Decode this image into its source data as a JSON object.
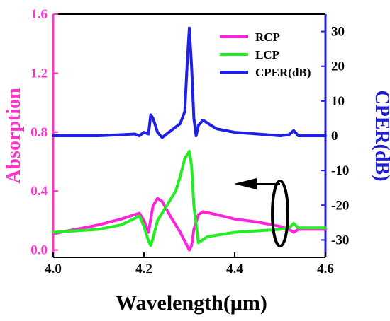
{
  "chart_data": {
    "type": "line",
    "xlabel": "Wavelength(μm)",
    "ylabel_left": "Absorption",
    "ylabel_right": "CPER(dB)",
    "xlim": [
      4.0,
      4.6
    ],
    "ylim_left": [
      -0.05,
      1.6
    ],
    "ylim_right": [
      -35,
      35
    ],
    "x_ticks": [
      "4.0",
      "4.2",
      "4.4",
      "4.6"
    ],
    "x_tick_values": [
      4.0,
      4.2,
      4.4,
      4.6
    ],
    "y_left_ticks": [
      "0.0",
      "0.4",
      "0.8",
      "1.2",
      "1.6"
    ],
    "y_left_tick_values": [
      0.0,
      0.4,
      0.8,
      1.2,
      1.6
    ],
    "y_right_ticks": [
      "-30",
      "-20",
      "-10",
      "0",
      "10",
      "20",
      "30"
    ],
    "y_right_tick_values": [
      -30,
      -20,
      -10,
      0,
      10,
      20,
      30
    ],
    "colors": {
      "left_axis": "#ff33cc",
      "right_axis": "#1f1fd6",
      "frame": "#000000"
    },
    "legend_placement": "top-right",
    "series": [
      {
        "name": "RCP",
        "axis": "left",
        "color": "#ff22dd",
        "x": [
          4.0,
          4.05,
          4.1,
          4.15,
          4.18,
          4.19,
          4.2,
          4.21,
          4.22,
          4.23,
          4.24,
          4.26,
          4.28,
          4.29,
          4.3,
          4.305,
          4.31,
          4.32,
          4.33,
          4.36,
          4.4,
          4.45,
          4.5,
          4.52,
          4.53,
          4.54,
          4.56,
          4.6
        ],
        "y": [
          0.11,
          0.14,
          0.17,
          0.21,
          0.24,
          0.25,
          0.2,
          0.12,
          0.3,
          0.35,
          0.33,
          0.22,
          0.12,
          0.06,
          0.0,
          0.03,
          0.14,
          0.24,
          0.26,
          0.24,
          0.21,
          0.19,
          0.16,
          0.14,
          0.12,
          0.14,
          0.14,
          0.14
        ]
      },
      {
        "name": "LCP",
        "axis": "left",
        "color": "#22ee22",
        "x": [
          4.0,
          4.05,
          4.1,
          4.15,
          4.17,
          4.19,
          4.2,
          4.21,
          4.215,
          4.22,
          4.23,
          4.25,
          4.27,
          4.28,
          4.29,
          4.3,
          4.305,
          4.31,
          4.32,
          4.34,
          4.4,
          4.45,
          4.5,
          4.52,
          4.53,
          4.54,
          4.56,
          4.6
        ],
        "y": [
          0.12,
          0.13,
          0.14,
          0.17,
          0.2,
          0.23,
          0.16,
          0.06,
          0.03,
          0.08,
          0.2,
          0.3,
          0.4,
          0.5,
          0.62,
          0.67,
          0.57,
          0.3,
          0.05,
          0.09,
          0.12,
          0.13,
          0.14,
          0.15,
          0.18,
          0.15,
          0.15,
          0.15
        ]
      },
      {
        "name": "CPER(dB)",
        "axis": "right",
        "color": "#1f1fe6",
        "x": [
          4.0,
          4.1,
          4.15,
          4.18,
          4.19,
          4.2,
          4.21,
          4.215,
          4.22,
          4.23,
          4.24,
          4.26,
          4.28,
          4.29,
          4.295,
          4.3,
          4.305,
          4.31,
          4.315,
          4.32,
          4.33,
          4.36,
          4.4,
          4.45,
          4.5,
          4.52,
          4.53,
          4.54,
          4.6
        ],
        "y": [
          0.0,
          0.0,
          0.3,
          0.5,
          0.0,
          1.0,
          0.5,
          6.0,
          5.0,
          1.0,
          -0.5,
          1.5,
          3.5,
          7.0,
          20.0,
          31.0,
          20.0,
          5.0,
          0.0,
          3.0,
          4.5,
          2.0,
          1.0,
          0.5,
          0.0,
          0.3,
          1.5,
          0.0,
          0.0
        ]
      }
    ],
    "annotation": {
      "description": "ellipse with arrow pointing left",
      "x": 4.5
    }
  }
}
